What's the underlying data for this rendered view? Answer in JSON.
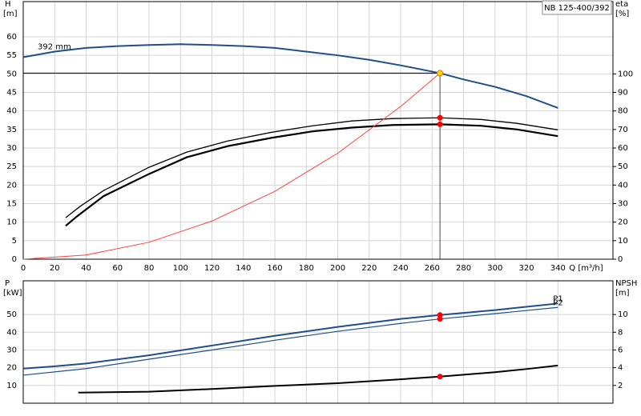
{
  "chart_data": [
    {
      "type": "line",
      "model_label": "NB 125-400/392",
      "ylabel": "H",
      "yunit": "[m]",
      "y2label": "eta",
      "y2unit": "[%]",
      "xlabel": "Q [m³/h]",
      "xlim": [
        0,
        375
      ],
      "xticks": [
        0,
        20,
        40,
        60,
        80,
        100,
        120,
        140,
        160,
        180,
        200,
        220,
        240,
        260,
        280,
        300,
        320,
        340
      ],
      "ylim": [
        0,
        69.5
      ],
      "yticks": [
        0,
        5,
        10,
        15,
        20,
        25,
        30,
        35,
        40,
        45,
        50,
        55,
        60
      ],
      "y2lim": [
        0,
        139
      ],
      "y2ticks": [
        0,
        10,
        20,
        30,
        40,
        50,
        60,
        70,
        80,
        90,
        100
      ],
      "grid": true,
      "duty_lines": true,
      "series": [
        {
          "name": "392 mm",
          "color": "#1f4e8c",
          "width": 2,
          "x": [
            0,
            20,
            40,
            60,
            80,
            100,
            120,
            140,
            160,
            180,
            200,
            220,
            240,
            265,
            280,
            300,
            320,
            340
          ],
          "values": [
            54.5,
            56,
            57,
            57.5,
            57.8,
            58,
            57.8,
            57.5,
            57,
            56,
            55,
            53.8,
            52.3,
            50.2,
            48.5,
            46.5,
            44,
            40.8
          ]
        },
        {
          "color": "#000000",
          "width": 1.3,
          "axis": "y2",
          "x": [
            27,
            36,
            51,
            80,
            104,
            130,
            158,
            184,
            209,
            235,
            265,
            291,
            314,
            340
          ],
          "values": [
            22.4,
            28.4,
            37,
            49.6,
            57.8,
            63.8,
            68.5,
            72,
            74.6,
            75.9,
            76.3,
            75.4,
            73.3,
            69.8
          ]
        },
        {
          "color": "#000000",
          "width": 2.2,
          "axis": "y2",
          "x": [
            27,
            34,
            51,
            80,
            104,
            130,
            158,
            184,
            209,
            235,
            265,
            291,
            314,
            340
          ],
          "values": [
            18,
            23,
            34,
            46,
            55,
            61,
            65.5,
            69,
            71,
            72.4,
            72.8,
            72,
            70,
            66.4
          ]
        },
        {
          "color": "#ff4040",
          "width": 1,
          "x": [
            0,
            40,
            80,
            120,
            160,
            200,
            240,
            265
          ],
          "values": [
            0,
            1.14,
            4.57,
            10.3,
            18.3,
            28.6,
            41.2,
            50.2
          ]
        }
      ],
      "markers": [
        {
          "x": 265,
          "y": 50.2,
          "color": "#ffd700"
        },
        {
          "x": 265,
          "y": 76.3,
          "axis": "y2",
          "color": "#ff0000"
        },
        {
          "x": 265,
          "y": 72.8,
          "axis": "y2",
          "color": "#ff0000"
        }
      ]
    },
    {
      "type": "line",
      "ylabel": "P",
      "yunit": "[kW]",
      "y2label": "NPSH",
      "y2unit": "[m]",
      "xlim": [
        0,
        375
      ],
      "xticks": [
        0,
        20,
        40,
        60,
        80,
        100,
        120,
        140,
        160,
        180,
        200,
        220,
        240,
        260,
        280,
        300,
        320,
        340
      ],
      "ylim": [
        0,
        69
      ],
      "yticks": [
        10,
        20,
        30,
        40,
        50
      ],
      "y2lim": [
        0,
        13.8
      ],
      "y2ticks": [
        2,
        4,
        6,
        8,
        10
      ],
      "grid": true,
      "series": [
        {
          "name": "P1",
          "color": "#1f4e8c",
          "width": 2,
          "x": [
            0,
            20,
            40,
            80,
            120,
            160,
            200,
            240,
            265,
            300,
            340
          ],
          "values": [
            19.5,
            20.8,
            22.4,
            27,
            32.5,
            38,
            43,
            47.5,
            49.7,
            52.5,
            56.2
          ]
        },
        {
          "name": "P2",
          "color": "#1f4e8c",
          "width": 1.2,
          "x": [
            0,
            40,
            80,
            120,
            160,
            200,
            240,
            265,
            300,
            340
          ],
          "values": [
            15.8,
            19.5,
            24.8,
            30,
            35.5,
            40.5,
            45,
            47.5,
            50.5,
            54
          ]
        },
        {
          "color": "#000000",
          "width": 2,
          "axis": "y2",
          "x": [
            35,
            80,
            120,
            160,
            200,
            240,
            265,
            300,
            320,
            340
          ],
          "values": [
            1.2,
            1.3,
            1.6,
            1.95,
            2.25,
            2.7,
            3.0,
            3.5,
            3.85,
            4.25
          ]
        }
      ],
      "markers": [
        {
          "x": 265,
          "y": 49.7,
          "color": "#ff0000"
        },
        {
          "x": 265,
          "y": 47.5,
          "color": "#ff0000"
        },
        {
          "x": 265,
          "y": 3.0,
          "axis": "y2",
          "color": "#ff0000"
        }
      ]
    }
  ]
}
